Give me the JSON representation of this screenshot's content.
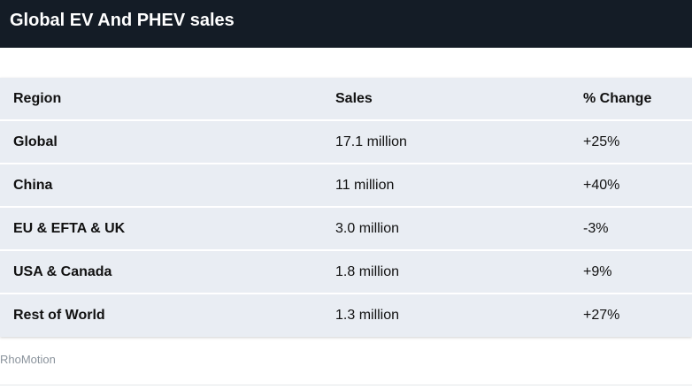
{
  "chart_data": {
    "type": "table",
    "title": "Global EV And PHEV sales",
    "columns": [
      "Region",
      "Sales",
      "% Change"
    ],
    "rows": [
      [
        "Global",
        "17.1 million",
        "+25%"
      ],
      [
        "China",
        "11 million",
        "+40%"
      ],
      [
        "EU & EFTA & UK",
        "3.0 million",
        "-3%"
      ],
      [
        "USA & Canada",
        "1.8 million",
        "+9%"
      ],
      [
        "Rest of World",
        "1.3 million",
        "+27%"
      ]
    ],
    "source": "RhoMotion"
  },
  "colors": {
    "header_bg": "#141c26",
    "table_bg": "#e9edf3",
    "source_text": "#8a939c"
  }
}
